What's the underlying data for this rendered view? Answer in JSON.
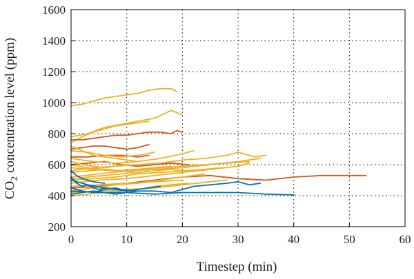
{
  "chart_data": {
    "type": "line",
    "xlabel": "Timestep (min)",
    "ylabel_main": "CO",
    "ylabel_sub": "2",
    "ylabel_rest": " concentration level (ppm)",
    "xlim": [
      0,
      60
    ],
    "ylim": [
      200,
      1600
    ],
    "xticks": [
      "0",
      "10",
      "20",
      "30",
      "40",
      "50",
      "60"
    ],
    "yticks": [
      "200",
      "400",
      "600",
      "800",
      "1000",
      "1200",
      "1400",
      "1600"
    ],
    "grid": true,
    "colors": {
      "yellow": "#EDB120",
      "orange": "#D95319",
      "blue": "#0072BD",
      "axis": "#000000",
      "grid": "#000000"
    },
    "series": [
      {
        "color": "yellow",
        "x": [
          0,
          2,
          4,
          6,
          8,
          10,
          12,
          14,
          16,
          18,
          19
        ],
        "y": [
          980,
          990,
          1010,
          1030,
          1040,
          1050,
          1060,
          1080,
          1090,
          1090,
          1070
        ]
      },
      {
        "color": "yellow",
        "x": [
          0,
          3,
          6,
          9,
          12,
          15,
          18,
          20
        ],
        "y": [
          780,
          800,
          840,
          860,
          880,
          900,
          950,
          920
        ]
      },
      {
        "color": "yellow",
        "x": [
          0,
          2,
          4,
          6,
          8,
          10,
          12,
          14
        ],
        "y": [
          740,
          780,
          810,
          830,
          850,
          860,
          870,
          880
        ]
      },
      {
        "color": "orange",
        "x": [
          0,
          2,
          4,
          6,
          8,
          10,
          12,
          14,
          16,
          18,
          19,
          20
        ],
        "y": [
          760,
          760,
          770,
          780,
          790,
          790,
          800,
          810,
          810,
          800,
          820,
          810
        ]
      },
      {
        "color": "orange",
        "x": [
          0,
          2,
          4,
          6,
          8,
          10,
          12,
          14
        ],
        "y": [
          700,
          710,
          720,
          720,
          710,
          700,
          710,
          730
        ]
      },
      {
        "color": "orange",
        "x": [
          0,
          3,
          6,
          9,
          12,
          14
        ],
        "y": [
          650,
          650,
          660,
          660,
          650,
          660
        ]
      },
      {
        "color": "orange",
        "x": [
          0,
          5,
          10,
          15,
          20,
          25,
          30,
          35,
          40,
          45,
          50,
          53
        ],
        "y": [
          450,
          460,
          480,
          500,
          520,
          530,
          510,
          500,
          520,
          530,
          530,
          530
        ]
      },
      {
        "color": "orange",
        "x": [
          0,
          3,
          6,
          9,
          12,
          15,
          18,
          21
        ],
        "y": [
          600,
          610,
          620,
          600,
          590,
          600,
          610,
          600
        ]
      },
      {
        "color": "yellow",
        "x": [
          0,
          4,
          8,
          12,
          16,
          20,
          24,
          28,
          30,
          33,
          35
        ],
        "y": [
          560,
          580,
          590,
          600,
          610,
          630,
          640,
          660,
          680,
          650,
          660
        ]
      },
      {
        "color": "yellow",
        "x": [
          0,
          5,
          10,
          15,
          20,
          25,
          30,
          34
        ],
        "y": [
          520,
          540,
          560,
          570,
          580,
          600,
          620,
          640
        ]
      },
      {
        "color": "yellow",
        "x": [
          0,
          4,
          8,
          12,
          16,
          20,
          22
        ],
        "y": [
          640,
          620,
          610,
          620,
          640,
          670,
          690
        ]
      },
      {
        "color": "yellow",
        "x": [
          0,
          3,
          6,
          9,
          12,
          15
        ],
        "y": [
          690,
          680,
          660,
          650,
          660,
          680
        ]
      },
      {
        "color": "yellow",
        "x": [
          0,
          5,
          10,
          15,
          20,
          25,
          30,
          32
        ],
        "y": [
          480,
          500,
          510,
          530,
          550,
          570,
          590,
          610
        ]
      },
      {
        "color": "yellow",
        "x": [
          0,
          4,
          8,
          12,
          16,
          20,
          24
        ],
        "y": [
          430,
          450,
          470,
          480,
          500,
          520,
          540
        ]
      },
      {
        "color": "yellow",
        "x": [
          0,
          3,
          6,
          9,
          12,
          15,
          18
        ],
        "y": [
          600,
          580,
          570,
          560,
          570,
          580,
          590
        ]
      },
      {
        "color": "yellow",
        "x": [
          0,
          2,
          4,
          6,
          8,
          10,
          12
        ],
        "y": [
          720,
          690,
          660,
          650,
          640,
          630,
          620
        ]
      },
      {
        "color": "yellow",
        "x": [
          0,
          5,
          10,
          15,
          20,
          25,
          28
        ],
        "y": [
          420,
          430,
          440,
          450,
          470,
          490,
          500
        ]
      },
      {
        "color": "yellow",
        "x": [
          0,
          3,
          6,
          9,
          12,
          15,
          18,
          21
        ],
        "y": [
          400,
          410,
          420,
          430,
          440,
          460,
          470,
          480
        ]
      },
      {
        "color": "yellow",
        "x": [
          0,
          4,
          8,
          12,
          16,
          20,
          24,
          27
        ],
        "y": [
          500,
          510,
          520,
          540,
          550,
          560,
          570,
          580
        ]
      },
      {
        "color": "yellow",
        "x": [
          0,
          2,
          4,
          6,
          8,
          10
        ],
        "y": [
          620,
          600,
          590,
          580,
          590,
          600
        ]
      },
      {
        "color": "yellow",
        "x": [
          0,
          3,
          6,
          9,
          12,
          14
        ],
        "y": [
          550,
          560,
          570,
          560,
          550,
          560
        ]
      },
      {
        "color": "yellow",
        "x": [
          0,
          5,
          10,
          15,
          20
        ],
        "y": [
          460,
          470,
          480,
          490,
          500
        ]
      },
      {
        "color": "yellow",
        "x": [
          0,
          4,
          8,
          12,
          16,
          20,
          24,
          28,
          32
        ],
        "y": [
          580,
          570,
          560,
          570,
          580,
          590,
          600,
          610,
          620
        ]
      },
      {
        "color": "yellow",
        "x": [
          0,
          3,
          6,
          9,
          12,
          15,
          18,
          20
        ],
        "y": [
          510,
          520,
          530,
          540,
          550,
          560,
          570,
          560
        ]
      },
      {
        "color": "blue",
        "x": [
          0,
          5,
          10,
          15,
          20,
          25,
          30,
          35,
          40
        ],
        "y": [
          430,
          420,
          420,
          410,
          420,
          420,
          420,
          410,
          405
        ]
      },
      {
        "color": "blue",
        "x": [
          0,
          3,
          6,
          9,
          12,
          15,
          18,
          20,
          22,
          25,
          28,
          30,
          32,
          34
        ],
        "y": [
          500,
          470,
          450,
          440,
          430,
          430,
          420,
          440,
          460,
          470,
          480,
          490,
          470,
          480
        ]
      },
      {
        "color": "blue",
        "x": [
          0,
          1,
          2,
          3,
          4,
          5,
          6,
          8,
          10
        ],
        "y": [
          520,
          480,
          460,
          470,
          450,
          440,
          450,
          440,
          430
        ]
      },
      {
        "color": "blue",
        "x": [
          0,
          2,
          4,
          6,
          8,
          10,
          12,
          14,
          16
        ],
        "y": [
          450,
          430,
          420,
          440,
          450,
          430,
          440,
          450,
          460
        ]
      },
      {
        "color": "blue",
        "x": [
          0,
          1,
          2,
          3,
          4,
          6
        ],
        "y": [
          560,
          530,
          510,
          500,
          490,
          480
        ]
      },
      {
        "color": "blue",
        "x": [
          0,
          2,
          4,
          6,
          8,
          10,
          12
        ],
        "y": [
          410,
          420,
          430,
          420,
          410,
          420,
          430
        ]
      }
    ]
  }
}
